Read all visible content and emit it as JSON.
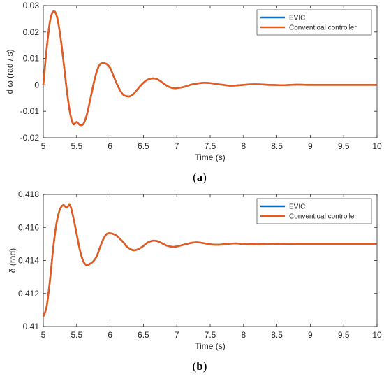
{
  "colors": {
    "evic": "#0072BD",
    "conventional": "#E85A1B",
    "axis": "#262626",
    "background": "#ffffff"
  },
  "captions": {
    "a_label": "a",
    "b_label": "b"
  },
  "chart_data": [
    {
      "type": "line",
      "title": "",
      "xlabel": "Time (s)",
      "ylabel": "d ω (rad / s)",
      "xlim": [
        5,
        10
      ],
      "ylim": [
        -0.02,
        0.03
      ],
      "xticks": [
        5,
        5.5,
        6,
        6.5,
        7,
        7.5,
        8,
        8.5,
        9,
        9.5,
        10
      ],
      "xtick_labels": [
        "5",
        "5.5",
        "6",
        "6.5",
        "7",
        "7.5",
        "8",
        "8.5",
        "9",
        "9.5",
        "10"
      ],
      "yticks": [
        -0.02,
        -0.01,
        0,
        0.01,
        0.02,
        0.03
      ],
      "ytick_labels": [
        "-0.02",
        "-0.01",
        "0",
        "0.01",
        "0.02",
        "0.03"
      ],
      "grid": false,
      "legend_position": "top-right",
      "x": [
        5.0,
        5.05,
        5.1,
        5.15,
        5.2,
        5.25,
        5.3,
        5.35,
        5.4,
        5.45,
        5.5,
        5.55,
        5.6,
        5.65,
        5.7,
        5.75,
        5.8,
        5.85,
        5.9,
        5.95,
        6.0,
        6.05,
        6.1,
        6.15,
        6.2,
        6.25,
        6.3,
        6.35,
        6.4,
        6.45,
        6.5,
        6.55,
        6.6,
        6.65,
        6.7,
        6.75,
        6.8,
        6.85,
        6.9,
        6.95,
        7.0,
        7.1,
        7.2,
        7.3,
        7.4,
        7.5,
        7.6,
        7.7,
        7.8,
        7.9,
        8.0,
        8.1,
        8.25,
        8.4,
        8.6,
        8.8,
        9.0,
        9.2,
        9.4,
        9.6,
        9.8,
        10.0
      ],
      "series": [
        {
          "name": "EVIC",
          "color": "#0072BD",
          "values": [
            0.0,
            0.0135,
            0.024,
            0.0278,
            0.0262,
            0.0195,
            0.0095,
            -0.0015,
            -0.0105,
            -0.0148,
            -0.014,
            -0.0152,
            -0.0148,
            -0.0115,
            -0.006,
            0.0,
            0.005,
            0.0078,
            0.0082,
            0.0079,
            0.0065,
            0.0035,
            0.0005,
            -0.002,
            -0.0038,
            -0.0043,
            -0.0043,
            -0.0035,
            -0.002,
            -0.0005,
            0.0008,
            0.0018,
            0.0023,
            0.0025,
            0.0022,
            0.0015,
            0.0006,
            -0.0003,
            -0.0009,
            -0.0012,
            -0.0012,
            -0.0008,
            0.0,
            0.0005,
            0.0008,
            0.0007,
            0.0003,
            0.0,
            -0.0003,
            -0.0002,
            0.0,
            0.0002,
            0.0002,
            0.0,
            -0.0001,
            0.0001,
            0.0,
            0.0,
            0.0,
            0.0,
            0.0,
            0.0
          ]
        },
        {
          "name": "Conventioal controller",
          "color": "#E85A1B",
          "values": [
            0.0,
            0.0135,
            0.024,
            0.0278,
            0.0262,
            0.0195,
            0.0095,
            -0.0015,
            -0.0105,
            -0.0148,
            -0.014,
            -0.0152,
            -0.0148,
            -0.0115,
            -0.006,
            0.0,
            0.005,
            0.0078,
            0.0082,
            0.0079,
            0.0065,
            0.0035,
            0.0005,
            -0.002,
            -0.0038,
            -0.0043,
            -0.0043,
            -0.0035,
            -0.002,
            -0.0005,
            0.0008,
            0.0018,
            0.0023,
            0.0025,
            0.0022,
            0.0015,
            0.0006,
            -0.0003,
            -0.0009,
            -0.0012,
            -0.0012,
            -0.0008,
            0.0,
            0.0005,
            0.0008,
            0.0007,
            0.0003,
            0.0,
            -0.0003,
            -0.0002,
            0.0,
            0.0002,
            0.0002,
            0.0,
            -0.0001,
            0.0001,
            0.0,
            0.0,
            0.0,
            0.0,
            0.0,
            0.0
          ]
        }
      ]
    },
    {
      "type": "line",
      "title": "",
      "xlabel": "Time (s)",
      "ylabel": "δ (rad)",
      "xlim": [
        5,
        10
      ],
      "ylim": [
        0.41,
        0.418
      ],
      "xticks": [
        5,
        5.5,
        6,
        6.5,
        7,
        7.5,
        8,
        8.5,
        9,
        9.5,
        10
      ],
      "xtick_labels": [
        "5",
        "5.5",
        "6",
        "6.5",
        "7",
        "7.5",
        "8",
        "8.5",
        "9",
        "9.5",
        "10"
      ],
      "yticks": [
        0.41,
        0.412,
        0.414,
        0.416,
        0.418
      ],
      "ytick_labels": [
        "0.41",
        "0.412",
        "0.414",
        "0.416",
        "0.418"
      ],
      "grid": false,
      "legend_position": "top-right",
      "x": [
        5.0,
        5.05,
        5.1,
        5.15,
        5.2,
        5.25,
        5.3,
        5.35,
        5.4,
        5.45,
        5.5,
        5.55,
        5.6,
        5.65,
        5.7,
        5.75,
        5.8,
        5.85,
        5.9,
        5.95,
        6.0,
        6.05,
        6.1,
        6.15,
        6.2,
        6.25,
        6.3,
        6.35,
        6.4,
        6.45,
        6.5,
        6.55,
        6.6,
        6.65,
        6.7,
        6.75,
        6.8,
        6.85,
        6.9,
        6.95,
        7.0,
        7.1,
        7.2,
        7.3,
        7.4,
        7.5,
        7.6,
        7.7,
        7.8,
        7.9,
        8.0,
        8.2,
        8.4,
        8.6,
        8.8,
        9.0,
        9.3,
        9.6,
        10.0
      ],
      "series": [
        {
          "name": "EVIC",
          "color": "#0072BD",
          "values": [
            0.4106,
            0.4112,
            0.4128,
            0.4148,
            0.4163,
            0.4171,
            0.41735,
            0.4172,
            0.41735,
            0.4166,
            0.4156,
            0.4146,
            0.41395,
            0.41372,
            0.4138,
            0.41395,
            0.41425,
            0.4148,
            0.4153,
            0.4156,
            0.41565,
            0.4156,
            0.4155,
            0.4153,
            0.4151,
            0.41485,
            0.4147,
            0.41462,
            0.41465,
            0.41475,
            0.41488,
            0.41505,
            0.41515,
            0.4152,
            0.41518,
            0.4151,
            0.415,
            0.4149,
            0.41485,
            0.41482,
            0.41485,
            0.41495,
            0.41505,
            0.4151,
            0.41505,
            0.41498,
            0.41495,
            0.41498,
            0.41502,
            0.41503,
            0.415,
            0.41498,
            0.415,
            0.41501,
            0.415,
            0.415,
            0.415,
            0.415,
            0.415
          ]
        },
        {
          "name": "Conventioal controller",
          "color": "#E85A1B",
          "values": [
            0.4106,
            0.4112,
            0.4128,
            0.4148,
            0.4163,
            0.4171,
            0.41735,
            0.4172,
            0.41735,
            0.4166,
            0.4156,
            0.4146,
            0.41395,
            0.41372,
            0.4138,
            0.41395,
            0.41425,
            0.4148,
            0.4153,
            0.4156,
            0.41565,
            0.4156,
            0.4155,
            0.4153,
            0.4151,
            0.41485,
            0.4147,
            0.41462,
            0.41465,
            0.41475,
            0.41488,
            0.41505,
            0.41515,
            0.4152,
            0.41518,
            0.4151,
            0.415,
            0.4149,
            0.41485,
            0.41482,
            0.41485,
            0.41495,
            0.41505,
            0.4151,
            0.41505,
            0.41498,
            0.41495,
            0.41498,
            0.41502,
            0.41503,
            0.415,
            0.41498,
            0.415,
            0.41501,
            0.415,
            0.415,
            0.415,
            0.415,
            0.415
          ]
        }
      ]
    }
  ]
}
